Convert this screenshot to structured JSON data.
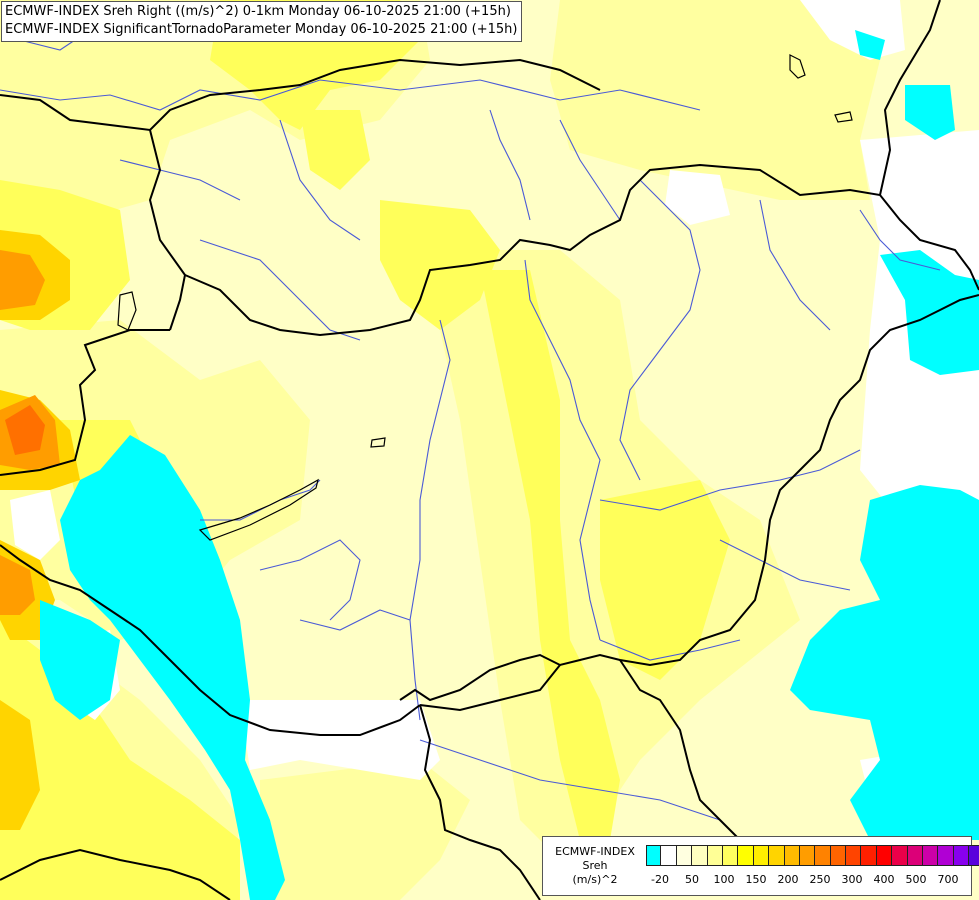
{
  "titles": {
    "line1": "ECMWF-INDEX Sreh Right ((m/s)^2) 0-1km Monday 06-10-2025 21:00 (+15h)",
    "line2": "ECMWF-INDEX SignificantTornadoParameter Monday 06-10-2025 21:00 (+15h)"
  },
  "legend": {
    "title_lines": [
      "ECMWF-INDEX",
      "Sreh",
      "(m/s)^2"
    ],
    "tick_labels": [
      "-20",
      "50",
      "100",
      "150",
      "200",
      "250",
      "300",
      "400",
      "500",
      "700"
    ],
    "swatch_colors": [
      "#00ffff",
      "#ffffff",
      "#ffffe0",
      "#ffffc0",
      "#ffff96",
      "#ffff60",
      "#ffff00",
      "#ffee00",
      "#ffd400",
      "#ffbb00",
      "#ff9d00",
      "#ff8200",
      "#ff6400",
      "#ff4400",
      "#ff2000",
      "#ff0000",
      "#ea0049",
      "#dc0078",
      "#cc00a8",
      "#b000d4",
      "#8800ee",
      "#5a00dc",
      "#3000b4",
      "#000082"
    ]
  },
  "colors": {
    "background": "#ffffc6",
    "cyan": "#00ffff",
    "pale": "#ffffa0",
    "yellow": "#ffff32",
    "gold": "#ffd400",
    "orange": "#ff9600",
    "dark_orange": "#ff6a00",
    "border": "#000000",
    "river": "#4a5ad6"
  }
}
